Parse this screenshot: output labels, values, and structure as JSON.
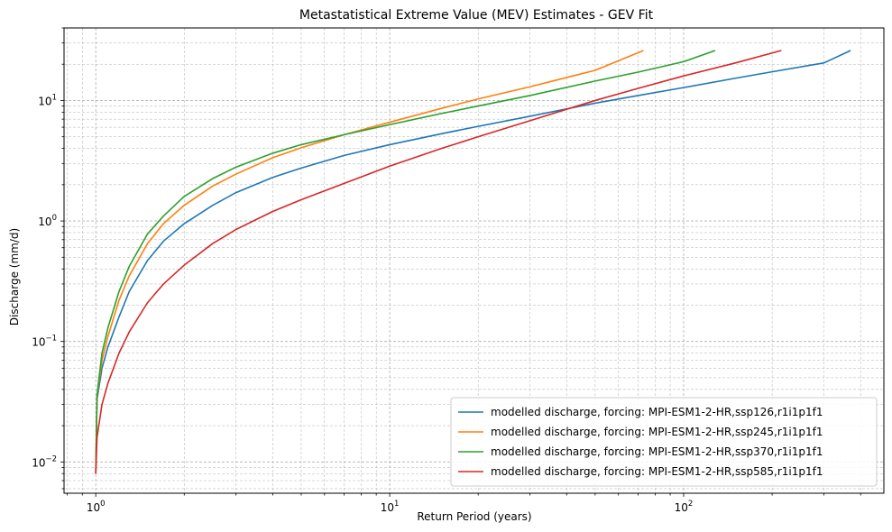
{
  "chart_data": {
    "type": "line",
    "title": "Metastatistical Extreme Value (MEV) Estimates - GEV Fit",
    "xlabel": "Return Period (years)",
    "ylabel": "Discharge (mm/d)",
    "xscale": "log",
    "yscale": "log",
    "xlim": [
      0.78,
      480
    ],
    "ylim": [
      0.0055,
      40
    ],
    "grid": true,
    "legend_loc": "lower-right",
    "x_ticks": [
      {
        "value": 1,
        "base": "10",
        "exp": "0"
      },
      {
        "value": 10,
        "base": "10",
        "exp": "1"
      },
      {
        "value": 100,
        "base": "10",
        "exp": "2"
      }
    ],
    "y_ticks": [
      {
        "value": 0.01,
        "base": "10",
        "exp": "−2"
      },
      {
        "value": 0.1,
        "base": "10",
        "exp": "−1"
      },
      {
        "value": 1,
        "base": "10",
        "exp": "0"
      },
      {
        "value": 10,
        "base": "10",
        "exp": "1"
      }
    ],
    "series": [
      {
        "name": "modelled discharge, forcing: MPI-ESM1-2-HR,ssp126,r1i1p1f1",
        "color": "#1f77b4",
        "x": [
          1.0,
          1.01,
          1.05,
          1.1,
          1.2,
          1.3,
          1.5,
          1.7,
          2,
          2.5,
          3,
          4,
          5,
          7,
          10,
          15,
          20,
          30,
          50,
          70,
          100,
          150,
          200,
          300,
          370
        ],
        "y": [
          0.008,
          0.033,
          0.06,
          0.09,
          0.16,
          0.26,
          0.47,
          0.68,
          0.95,
          1.35,
          1.72,
          2.3,
          2.75,
          3.5,
          4.3,
          5.3,
          6.1,
          7.4,
          9.5,
          11.0,
          12.8,
          15.3,
          17.3,
          20.5,
          26
        ]
      },
      {
        "name": "modelled discharge, forcing: MPI-ESM1-2-HR,ssp245,r1i1p1f1",
        "color": "#ff7f0e",
        "x": [
          1.0,
          1.01,
          1.05,
          1.1,
          1.2,
          1.3,
          1.5,
          1.7,
          2,
          2.5,
          3,
          4,
          5,
          7,
          10,
          15,
          20,
          30,
          50,
          73
        ],
        "y": [
          0.008,
          0.035,
          0.07,
          0.11,
          0.22,
          0.35,
          0.65,
          0.95,
          1.35,
          1.95,
          2.45,
          3.35,
          4.05,
          5.2,
          6.6,
          8.6,
          10.3,
          13.0,
          17.8,
          26
        ]
      },
      {
        "name": "modelled discharge, forcing: MPI-ESM1-2-HR,ssp370,r1i1p1f1",
        "color": "#2ca02c",
        "x": [
          1.0,
          1.01,
          1.05,
          1.1,
          1.2,
          1.3,
          1.5,
          1.7,
          2,
          2.5,
          3,
          4,
          5,
          7,
          10,
          15,
          20,
          30,
          50,
          70,
          100,
          128
        ],
        "y": [
          0.008,
          0.036,
          0.08,
          0.13,
          0.26,
          0.42,
          0.78,
          1.1,
          1.6,
          2.25,
          2.8,
          3.65,
          4.3,
          5.2,
          6.3,
          7.8,
          9.0,
          11.0,
          14.5,
          17.2,
          21.0,
          26
        ]
      },
      {
        "name": "modelled discharge, forcing: MPI-ESM1-2-HR,ssp585,r1i1p1f1",
        "color": "#d62728",
        "x": [
          1.0,
          1.01,
          1.05,
          1.1,
          1.2,
          1.3,
          1.5,
          1.7,
          2,
          2.5,
          3,
          4,
          5,
          7,
          10,
          15,
          20,
          30,
          50,
          70,
          100,
          150,
          215
        ],
        "y": [
          0.008,
          0.016,
          0.03,
          0.045,
          0.08,
          0.12,
          0.21,
          0.3,
          0.43,
          0.65,
          0.85,
          1.2,
          1.5,
          2.05,
          2.85,
          4.0,
          5.0,
          6.8,
          10.0,
          12.6,
          16.0,
          20.5,
          26
        ]
      }
    ]
  }
}
